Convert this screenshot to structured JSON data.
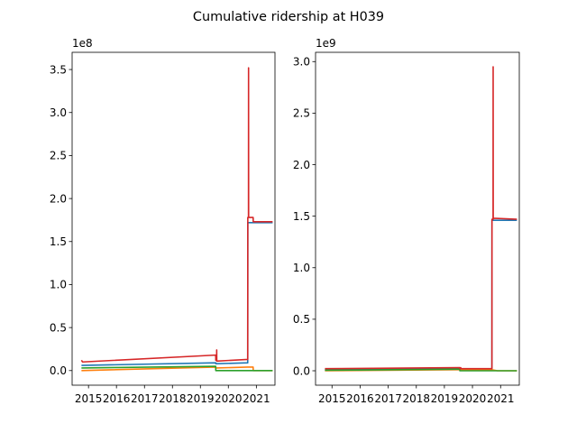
{
  "figure": {
    "title": "Cumulative ridership at H039"
  },
  "chart_data": [
    {
      "type": "line",
      "title": "",
      "xlabel": "",
      "ylabel": "",
      "y_offset_label": "1e8",
      "x_axis": "date",
      "xlim": [
        "2014-06-01",
        "2021-09-01"
      ],
      "ylim": [
        -0.17,
        3.7
      ],
      "x_ticks": [
        "2015",
        "2016",
        "2017",
        "2018",
        "2019",
        "2020",
        "2021"
      ],
      "y_ticks": [
        "0.0",
        "0.5",
        "1.0",
        "1.5",
        "2.0",
        "2.5",
        "3.0",
        "3.5"
      ],
      "y_tick_values": [
        0.0,
        0.5,
        1.0,
        1.5,
        2.0,
        2.5,
        3.0,
        3.5
      ],
      "grid": false,
      "legend": "none",
      "series": [
        {
          "color": "#1f77b4",
          "points": [
            [
              "2014-10-01",
              0.06
            ],
            [
              "2019-07-20",
              0.09
            ],
            [
              "2019-07-21",
              0.08
            ],
            [
              "2020-09-10",
              0.09
            ],
            [
              "2020-09-11",
              1.72
            ],
            [
              "2020-11-20",
              1.72
            ],
            [
              "2020-11-21",
              1.72
            ],
            [
              "2021-08-01",
              1.72
            ]
          ]
        },
        {
          "color": "#ff7f0e",
          "points": [
            [
              "2014-10-01",
              0.0
            ],
            [
              "2019-07-20",
              0.04
            ],
            [
              "2019-07-21",
              0.03
            ],
            [
              "2020-09-10",
              0.04
            ],
            [
              "2020-09-11",
              0.04
            ],
            [
              "2020-11-20",
              0.04
            ],
            [
              "2020-11-21",
              0.0
            ],
            [
              "2021-08-01",
              0.0
            ]
          ]
        },
        {
          "color": "#2ca02c",
          "points": [
            [
              "2014-10-01",
              0.03
            ],
            [
              "2019-07-20",
              0.05
            ],
            [
              "2019-07-21",
              0.0
            ],
            [
              "2021-08-01",
              0.0
            ]
          ]
        },
        {
          "color": "#d62728",
          "points": [
            [
              "2014-10-01",
              0.12
            ],
            [
              "2014-10-15",
              0.1
            ],
            [
              "2019-07-20",
              0.18
            ],
            [
              "2019-07-21",
              0.12
            ],
            [
              "2019-08-01",
              0.12
            ],
            [
              "2019-08-02",
              0.24
            ],
            [
              "2019-08-03",
              0.11
            ],
            [
              "2020-09-10",
              0.13
            ],
            [
              "2020-09-11",
              1.78
            ],
            [
              "2020-09-20",
              1.78
            ],
            [
              "2020-09-21",
              3.52
            ],
            [
              "2020-09-22",
              1.78
            ],
            [
              "2020-11-20",
              1.78
            ],
            [
              "2020-11-21",
              1.73
            ],
            [
              "2021-08-01",
              1.73
            ]
          ]
        }
      ]
    },
    {
      "type": "line",
      "title": "",
      "xlabel": "",
      "ylabel": "",
      "y_offset_label": "1e9",
      "x_axis": "date",
      "xlim": [
        "2014-06-01",
        "2021-09-01"
      ],
      "ylim": [
        -0.14,
        3.09
      ],
      "x_ticks": [
        "2015",
        "2016",
        "2017",
        "2018",
        "2019",
        "2020",
        "2021"
      ],
      "y_ticks": [
        "0.0",
        "0.5",
        "1.0",
        "1.5",
        "2.0",
        "2.5",
        "3.0"
      ],
      "y_tick_values": [
        0.0,
        0.5,
        1.0,
        1.5,
        2.0,
        2.5,
        3.0
      ],
      "grid": false,
      "legend": "none",
      "series": [
        {
          "color": "#1f77b4",
          "points": [
            [
              "2014-10-01",
              0.01
            ],
            [
              "2019-07-20",
              0.02
            ],
            [
              "2019-07-21",
              0.01
            ],
            [
              "2020-09-10",
              0.02
            ],
            [
              "2020-09-11",
              1.46
            ],
            [
              "2021-08-01",
              1.46
            ]
          ]
        },
        {
          "color": "#ff7f0e",
          "points": [
            [
              "2014-10-01",
              0.0
            ],
            [
              "2019-07-20",
              0.01
            ],
            [
              "2020-09-10",
              0.01
            ],
            [
              "2020-11-21",
              0.0
            ],
            [
              "2021-08-01",
              0.0
            ]
          ]
        },
        {
          "color": "#2ca02c",
          "points": [
            [
              "2014-10-01",
              0.005
            ],
            [
              "2019-07-20",
              0.015
            ],
            [
              "2019-07-21",
              0.0
            ],
            [
              "2021-08-01",
              0.0
            ]
          ]
        },
        {
          "color": "#d62728",
          "points": [
            [
              "2014-10-01",
              0.02
            ],
            [
              "2019-07-20",
              0.03
            ],
            [
              "2019-07-21",
              0.02
            ],
            [
              "2019-08-02",
              0.03
            ],
            [
              "2019-08-03",
              0.02
            ],
            [
              "2020-09-10",
              0.02
            ],
            [
              "2020-09-11",
              1.47
            ],
            [
              "2020-09-25",
              1.47
            ],
            [
              "2020-09-26",
              2.95
            ],
            [
              "2020-09-27",
              1.48
            ],
            [
              "2021-08-01",
              1.47
            ]
          ]
        }
      ]
    }
  ]
}
